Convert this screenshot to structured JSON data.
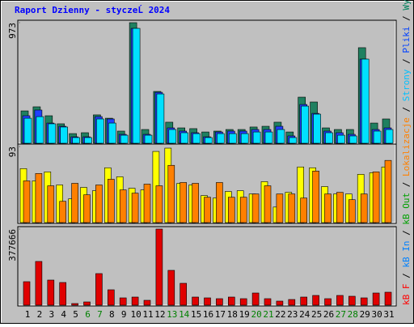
{
  "title": "Raport Dzienny -  styczeĹ  2024",
  "legend": [
    {
      "label": "kB F",
      "color": "#ff0000"
    },
    {
      "label": "kB In",
      "color": "#0080ff"
    },
    {
      "label": "kB Out",
      "color": "#00a000"
    },
    {
      "label": "Lokalizacje",
      "color": "#ff8000"
    },
    {
      "label": "Strony",
      "color": "#00c0ff"
    },
    {
      "label": "Pliki",
      "color": "#0040ff"
    },
    {
      "label": "WywoĹ‚ania",
      "color": "#00805c"
    }
  ],
  "categories": [
    "1",
    "2",
    "3",
    "4",
    "5",
    "6",
    "7",
    "8",
    "9",
    "10",
    "11",
    "12",
    "13",
    "14",
    "15",
    "16",
    "17",
    "18",
    "19",
    "20",
    "21",
    "22",
    "23",
    "24",
    "25",
    "26",
    "27",
    "28",
    "29",
    "30",
    "31"
  ],
  "category_colors": [
    "#000000",
    "#000000",
    "#000000",
    "#000000",
    "#000000",
    "#008000",
    "#008000",
    "#000000",
    "#000000",
    "#000000",
    "#000000",
    "#000000",
    "#008000",
    "#008000",
    "#000000",
    "#000000",
    "#000000",
    "#000000",
    "#000000",
    "#008000",
    "#008000",
    "#000000",
    "#000000",
    "#000000",
    "#000000",
    "#000000",
    "#008000",
    "#008000",
    "#000000",
    "#000000",
    "#000000"
  ],
  "chart_data": [
    {
      "type": "bar",
      "ylim": [
        0,
        973
      ],
      "yticks": [
        973
      ],
      "series": [
        {
          "color": "#1f8060",
          "values": [
            261,
            294,
            222,
            157,
            78,
            85,
            229,
            202,
            98,
            973,
            111,
            418,
            170,
            124,
            118,
            91,
            98,
            111,
            111,
            131,
            137,
            170,
            91,
            372,
            333,
            124,
            111,
            111,
            771,
            163,
            196
          ]
        },
        {
          "color": "#2040ff",
          "values": [
            222,
            268,
            163,
            137,
            52,
            52,
            215,
            196,
            72,
            927,
            72,
            411,
            124,
            98,
            85,
            52,
            91,
            98,
            98,
            111,
            111,
            137,
            59,
            313,
            241,
            98,
            85,
            72,
            679,
            111,
            124
          ]
        },
        {
          "color": "#00e0ff",
          "values": [
            202,
            215,
            157,
            131,
            46,
            46,
            196,
            163,
            65,
            927,
            65,
            398,
            111,
            85,
            78,
            46,
            78,
            78,
            78,
            91,
            91,
            111,
            46,
            300,
            235,
            85,
            65,
            59,
            679,
            98,
            111
          ]
        }
      ]
    },
    {
      "type": "bar",
      "ylim": [
        0,
        93
      ],
      "yticks": [
        93
      ],
      "series": [
        {
          "color": "#ffff00",
          "values": [
            66,
            51,
            62,
            46,
            29,
            43,
            39,
            67,
            56,
            42,
            40,
            87,
            91,
            48,
            46,
            33,
            30,
            38,
            39,
            35,
            50,
            19,
            37,
            68,
            67,
            44,
            35,
            35,
            59,
            61,
            68
          ]
        },
        {
          "color": "#ff8000",
          "values": [
            51,
            60,
            45,
            26,
            48,
            34,
            46,
            53,
            40,
            36,
            47,
            45,
            70,
            49,
            48,
            31,
            49,
            31,
            31,
            35,
            45,
            35,
            35,
            30,
            63,
            35,
            37,
            28,
            35,
            62,
            76
          ]
        }
      ]
    },
    {
      "type": "bar",
      "ylim": [
        0,
        377666
      ],
      "yticks": [
        377666
      ],
      "series": [
        {
          "color": "#e00000",
          "values": [
            116513,
            216958,
            124549,
            112497,
            8035,
            16071,
            156691,
            76336,
            36159,
            40177,
            24107,
            377666,
            172760,
            108479,
            40177,
            36159,
            32142,
            40177,
            32142,
            60266,
            32142,
            20089,
            28124,
            40177,
            48214,
            32142,
            48214,
            44196,
            36159,
            60266,
            64284
          ]
        }
      ]
    }
  ]
}
